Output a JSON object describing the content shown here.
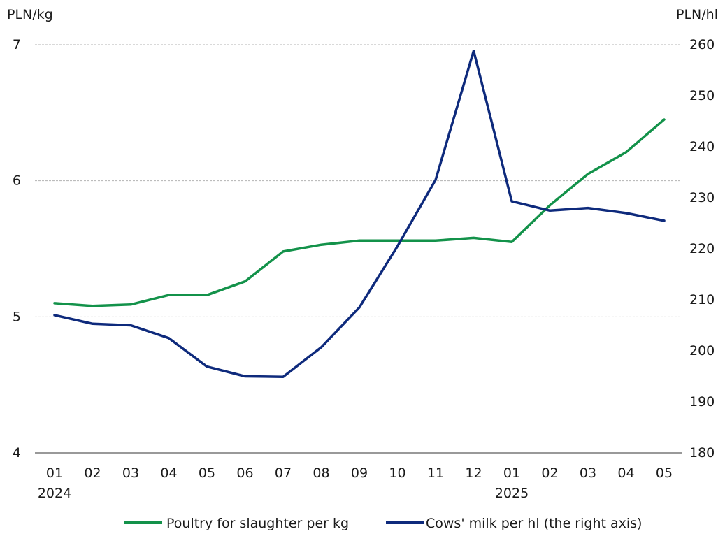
{
  "chart_data": {
    "type": "line",
    "left_unit": "PLN/kg",
    "right_unit": "PLN/hl",
    "categories": [
      "01",
      "02",
      "03",
      "04",
      "05",
      "06",
      "07",
      "08",
      "09",
      "10",
      "11",
      "12",
      "01",
      "02",
      "03",
      "04",
      "05"
    ],
    "year_labels": [
      {
        "index": 0,
        "label": "2024"
      },
      {
        "index": 12,
        "label": "2025"
      }
    ],
    "y_left": {
      "min": 4,
      "max": 7,
      "ticks": [
        4,
        5,
        6,
        7
      ]
    },
    "y_right": {
      "min": 180,
      "max": 260,
      "ticks": [
        180,
        190,
        200,
        210,
        220,
        230,
        240,
        250,
        260
      ]
    },
    "grid": true,
    "legend_position": "bottom",
    "series": [
      {
        "name": "Poultry for slaughter per kg",
        "axis": "left",
        "color": "#13924a",
        "values": [
          5.1,
          5.08,
          5.09,
          5.16,
          5.16,
          5.26,
          5.48,
          5.53,
          5.56,
          5.56,
          5.56,
          5.58,
          5.55,
          5.82,
          6.05,
          6.21,
          6.45
        ]
      },
      {
        "name": "Cows' milk per hl (the right axis)",
        "axis": "right",
        "color": "#0e2a7c",
        "values": [
          207.0,
          205.3,
          205.0,
          202.5,
          196.9,
          195.0,
          194.9,
          200.7,
          208.5,
          220.5,
          233.5,
          258.8,
          229.3,
          227.5,
          228.0,
          227.0,
          225.5
        ]
      }
    ]
  }
}
